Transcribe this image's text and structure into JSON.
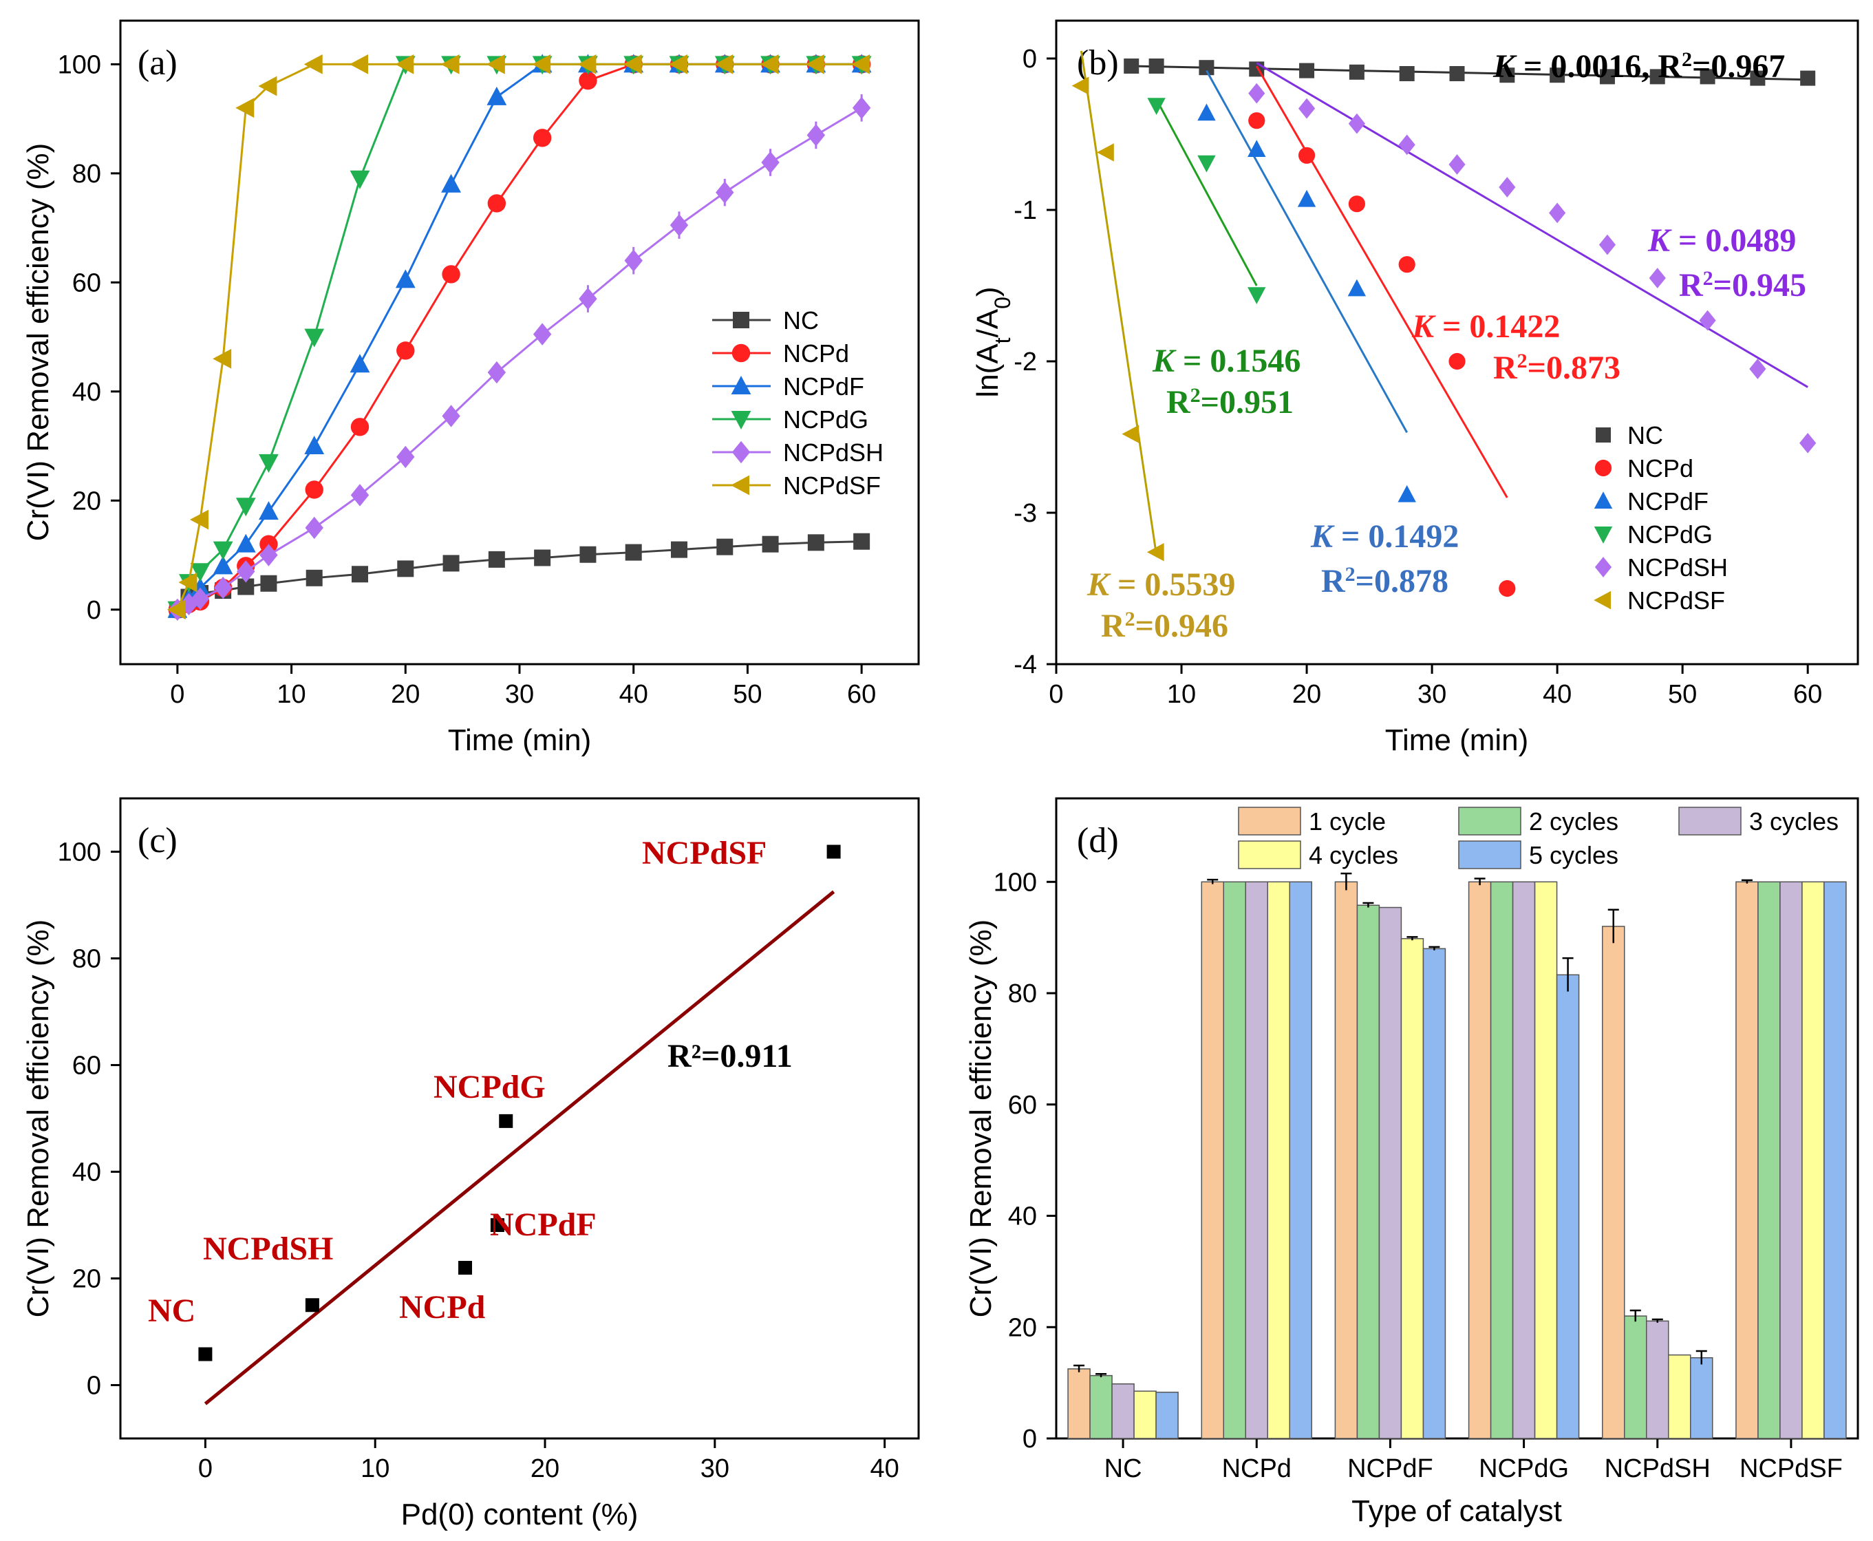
{
  "colors": {
    "NC": "#404040",
    "NCPd": "#ff2020",
    "NCPdF": "#1a6fdf",
    "NCPdG": "#20b050",
    "NCPdSH": "#b070f0",
    "NCPdSF": "#c8a000",
    "line_NC": "#303030",
    "line_NCPdF": "#2878c8",
    "line_NCPdG": "#20a020",
    "line_NCPdSH": "#8030e0",
    "line_NCPdSF": "#b8a000",
    "anno_darkred": "#c00000",
    "anno_blue": "#3a70c0",
    "anno_green": "#1a8a1a",
    "anno_gold": "#c09a20",
    "anno_purple": "#8a2be2",
    "fit_c": "#8b0000",
    "bar_c1": "#f8c89a",
    "bar_c2": "#98d898",
    "bar_c3": "#c8b8d8",
    "bar_c4": "#ffff99",
    "bar_c5": "#90b8f0"
  },
  "chart_data": [
    {
      "panel": "(a)",
      "type": "line",
      "xlabel": "Time (min)",
      "ylabel": "Cr(VI) Removal efficiency (%)",
      "xlim": [
        -5,
        65
      ],
      "ylim": [
        -10,
        108
      ],
      "xticks": [
        0,
        10,
        20,
        30,
        40,
        50,
        60
      ],
      "yticks": [
        0,
        20,
        40,
        60,
        80,
        100
      ],
      "legend": "center-right",
      "series": [
        {
          "name": "NC",
          "marker": "square",
          "x": [
            0,
            1,
            2,
            4,
            6,
            8,
            12,
            16,
            20,
            24,
            28,
            32,
            36,
            40,
            44,
            48,
            52,
            56,
            60
          ],
          "y": [
            0,
            2.3,
            3,
            3.5,
            4.2,
            4.8,
            5.8,
            6.5,
            7.5,
            8.5,
            9.2,
            9.5,
            10.1,
            10.5,
            11,
            11.5,
            12,
            12.3,
            12.5
          ]
        },
        {
          "name": "NCPd",
          "marker": "circle",
          "x": [
            0,
            1,
            2,
            4,
            6,
            8,
            12,
            16,
            20,
            24,
            28,
            32,
            36,
            40,
            44,
            48,
            52,
            56,
            60
          ],
          "y": [
            0,
            1,
            1.5,
            4,
            8,
            12,
            22,
            33.5,
            47.5,
            61.5,
            74.5,
            86.5,
            97,
            100,
            100,
            100,
            100,
            100,
            100
          ]
        },
        {
          "name": "NCPdF",
          "marker": "triangle-up",
          "x": [
            0,
            1,
            2,
            4,
            6,
            8,
            12,
            16,
            20,
            24,
            28,
            32,
            36,
            40,
            44,
            48,
            52,
            56,
            60
          ],
          "y": [
            0,
            2,
            4,
            8,
            12,
            18,
            30,
            45,
            60.5,
            78,
            94,
            100,
            100,
            100,
            100,
            100,
            100,
            100,
            100
          ]
        },
        {
          "name": "NCPdG",
          "marker": "triangle-down",
          "x": [
            0,
            1,
            2,
            4,
            6,
            8,
            12,
            16,
            20,
            24,
            28,
            32,
            36,
            40,
            44,
            48,
            52,
            56,
            60
          ],
          "y": [
            0,
            5,
            7,
            11,
            19,
            27,
            50,
            79,
            100,
            100,
            100,
            100,
            100,
            100,
            100,
            100,
            100,
            100,
            100
          ]
        },
        {
          "name": "NCPdSH",
          "marker": "diamond",
          "x": [
            0,
            1,
            2,
            4,
            6,
            8,
            12,
            16,
            20,
            24,
            28,
            32,
            36,
            40,
            44,
            48,
            52,
            56,
            60
          ],
          "y": [
            0,
            1,
            2,
            4,
            7,
            10,
            15,
            21,
            28,
            35.5,
            43.5,
            50.5,
            57,
            64,
            70.5,
            76.5,
            82,
            87,
            92
          ]
        },
        {
          "name": "NCPdSF",
          "marker": "triangle-left",
          "x": [
            0,
            1,
            2,
            4,
            6,
            8,
            12,
            16,
            20,
            24,
            28,
            32,
            36,
            40,
            44,
            48,
            52,
            56,
            60
          ],
          "y": [
            0,
            5,
            16.5,
            46,
            92,
            96,
            100,
            100,
            100,
            100,
            100,
            100,
            100,
            100,
            100,
            100,
            100,
            100,
            100
          ]
        }
      ]
    },
    {
      "panel": "(b)",
      "type": "scatter",
      "xlabel": "Time (min)",
      "ylabel": "ln(At/A0)",
      "xlim": [
        0,
        64
      ],
      "ylim": [
        -4,
        0.25
      ],
      "xticks": [
        0,
        10,
        20,
        30,
        40,
        50,
        60
      ],
      "yticks": [
        0,
        -1,
        -2,
        -3,
        -4
      ],
      "legend": "bottom-right",
      "series": [
        {
          "name": "NC",
          "marker": "square",
          "x": [
            6,
            8,
            12,
            16,
            20,
            24,
            28,
            32,
            36,
            40,
            44,
            48,
            52,
            56,
            60
          ],
          "y": [
            -0.05,
            -0.05,
            -0.06,
            -0.07,
            -0.08,
            -0.09,
            -0.1,
            -0.1,
            -0.11,
            -0.11,
            -0.12,
            -0.12,
            -0.12,
            -0.13,
            -0.13
          ],
          "fit": {
            "x": [
              6,
              60
            ],
            "y": [
              -0.05,
              -0.14
            ]
          }
        },
        {
          "name": "NCPd",
          "marker": "circle",
          "x": [
            16,
            20,
            24,
            28,
            32,
            36
          ],
          "y": [
            -0.41,
            -0.64,
            -0.96,
            -1.36,
            -2.0,
            -3.5
          ],
          "fit": {
            "x": [
              16,
              36
            ],
            "y": [
              -0.05,
              -2.9
            ]
          }
        },
        {
          "name": "NCPdF",
          "marker": "triangle-up",
          "x": [
            12,
            16,
            20,
            24,
            28
          ],
          "y": [
            -0.36,
            -0.6,
            -0.93,
            -1.52,
            -2.88
          ],
          "fit": {
            "x": [
              12,
              28
            ],
            "y": [
              -0.08,
              -2.47
            ]
          }
        },
        {
          "name": "NCPdG",
          "marker": "triangle-down",
          "x": [
            8,
            12,
            16
          ],
          "y": [
            -0.31,
            -0.69,
            -1.56
          ],
          "fit": {
            "x": [
              8,
              16
            ],
            "y": [
              -0.27,
              -1.5
            ]
          }
        },
        {
          "name": "NCPdSH",
          "marker": "diamond",
          "x": [
            16,
            20,
            24,
            28,
            32,
            36,
            40,
            44,
            48,
            52,
            56,
            60
          ],
          "y": [
            -0.23,
            -0.33,
            -0.43,
            -0.57,
            -0.7,
            -0.85,
            -1.02,
            -1.23,
            -1.45,
            -1.73,
            -2.05,
            -2.54
          ],
          "fit": {
            "x": [
              16,
              60
            ],
            "y": [
              -0.03,
              -2.17
            ]
          }
        },
        {
          "name": "NCPdSF",
          "marker": "triangle-left",
          "x": [
            2,
            4,
            6,
            8
          ],
          "y": [
            -0.18,
            -0.62,
            -2.48,
            -3.26
          ],
          "fit": {
            "x": [
              2,
              8
            ],
            "y": [
              0.05,
              -3.28
            ]
          }
        }
      ],
      "annotations": [
        {
          "k": "0.0016",
          "r2": "0.967",
          "color_key": "line_NC"
        },
        {
          "k": "0.1422",
          "r2": "0.873",
          "color_key": "NCPd"
        },
        {
          "k": "0.1492",
          "r2": "0.878",
          "color_key": "anno_blue"
        },
        {
          "k": "0.1546",
          "r2": "0.951",
          "color_key": "anno_green"
        },
        {
          "k": "0.0489",
          "r2": "0.945",
          "color_key": "anno_purple"
        },
        {
          "k": "0.5539",
          "r2": "0.946",
          "color_key": "anno_gold"
        }
      ]
    },
    {
      "panel": "(c)",
      "type": "scatter",
      "xlabel": "Pd(0) content (%)",
      "ylabel": "Cr(VI) Removal efficiency (%)",
      "xlim": [
        -5,
        42
      ],
      "ylim": [
        -10,
        110
      ],
      "xticks": [
        0,
        10,
        20,
        30,
        40
      ],
      "yticks": [
        0,
        20,
        40,
        60,
        80,
        100
      ],
      "points": [
        {
          "name": "NC",
          "x": 0,
          "y": 5.8
        },
        {
          "name": "NCPdSH",
          "x": 6.3,
          "y": 15
        },
        {
          "name": "NCPd",
          "x": 15.3,
          "y": 22
        },
        {
          "name": "NCPdF",
          "x": 17.2,
          "y": 30
        },
        {
          "name": "NCPdG",
          "x": 17.7,
          "y": 49.5
        },
        {
          "name": "NCPdSF",
          "x": 37.0,
          "y": 100
        }
      ],
      "fit": {
        "x": [
          0,
          37
        ],
        "y": [
          -3.5,
          92.5
        ]
      },
      "r2_label": "R²=0.911"
    },
    {
      "panel": "(d)",
      "type": "bar",
      "xlabel": "Type of catalyst",
      "ylabel": "Cr(VI) Removal efficiency (%)",
      "ylim": [
        0,
        115
      ],
      "yticks": [
        0,
        20,
        40,
        60,
        80,
        100
      ],
      "categories": [
        "NC",
        "NCPd",
        "NCPdF",
        "NCPdG",
        "NCPdSH",
        "NCPdSF"
      ],
      "legend": "top",
      "series": [
        {
          "name": "1 cycle",
          "values": [
            12.5,
            100,
            100,
            100,
            92,
            100
          ],
          "err": [
            0.6,
            0.4,
            1.5,
            0.6,
            3,
            0.3
          ]
        },
        {
          "name": "2 cycles",
          "values": [
            11.3,
            100,
            95.8,
            100,
            22,
            100
          ],
          "err": [
            0.3,
            0,
            0.4,
            0,
            1,
            0
          ]
        },
        {
          "name": "3 cycles",
          "values": [
            9.8,
            100,
            95.4,
            100,
            21.1,
            100
          ],
          "err": [
            0,
            0,
            0,
            0,
            0.3,
            0
          ]
        },
        {
          "name": "4 cycles",
          "values": [
            8.5,
            100,
            89.8,
            100,
            15,
            100
          ],
          "err": [
            0,
            0,
            0.3,
            0,
            0,
            0
          ]
        },
        {
          "name": "5 cycles",
          "values": [
            8.3,
            100,
            88,
            83.3,
            14.5,
            100
          ],
          "err": [
            0,
            0,
            0.3,
            3,
            1.2,
            0
          ]
        }
      ]
    }
  ]
}
